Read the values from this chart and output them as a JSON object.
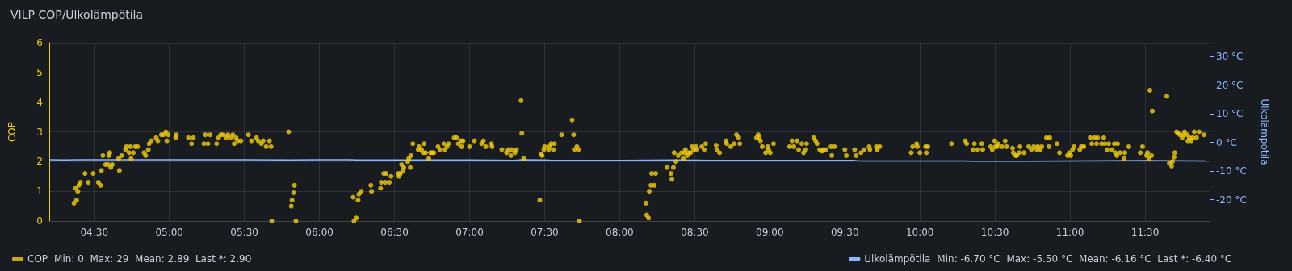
{
  "chart_data": {
    "type": "scatter",
    "title": "VILP COP/Ulkolämpötila",
    "ylabel": "COP",
    "y2label": "Ulkolämpötila",
    "xlim": [
      4.2,
      11.93
    ],
    "xticks": [
      {
        "value": 4.5,
        "label": "04:30"
      },
      {
        "value": 5,
        "label": "05:00"
      },
      {
        "value": 5.5,
        "label": "05:30"
      },
      {
        "value": 6,
        "label": "06:00"
      },
      {
        "value": 6.5,
        "label": "06:30"
      },
      {
        "value": 7,
        "label": "07:00"
      },
      {
        "value": 7.5,
        "label": "07:30"
      },
      {
        "value": 8,
        "label": "08:00"
      },
      {
        "value": 8.5,
        "label": "08:30"
      },
      {
        "value": 9,
        "label": "09:00"
      },
      {
        "value": 9.5,
        "label": "09:30"
      },
      {
        "value": 10,
        "label": "10:00"
      },
      {
        "value": 10.5,
        "label": "10:30"
      },
      {
        "value": 11,
        "label": "11:00"
      },
      {
        "value": 11.5,
        "label": "11:30"
      }
    ],
    "ylim": [
      0,
      6
    ],
    "yticks": [
      0,
      1,
      2,
      3,
      4,
      5,
      6
    ],
    "y2lim": [
      -27.4,
      34.8
    ],
    "y2ticks": [
      {
        "value": -20,
        "label": "-20 °C"
      },
      {
        "value": -10,
        "label": "-10 °C"
      },
      {
        "value": 0,
        "label": "0 °C"
      },
      {
        "value": 10,
        "label": "10 °C"
      },
      {
        "value": 20,
        "label": "20 °C"
      },
      {
        "value": 30,
        "label": "30 °C"
      }
    ],
    "grid": true,
    "legend": "bottom",
    "marker": "circle",
    "annotations": [
      "Min: 0  Max: 29  Mean: 2.89  Last *: 2.90",
      "Min: -6.70 °C  Max: -5.50 °C  Mean: -6.16 °C  Last *: -6.40 °C"
    ],
    "series": [
      {
        "name": "COP",
        "color": "#f2cc0c",
        "x": [
          4.365,
          4.375,
          4.382,
          4.39,
          4.397,
          4.407,
          4.438,
          4.46,
          4.493,
          4.527,
          4.542,
          4.547,
          4.557,
          4.575,
          4.592,
          4.597,
          4.603,
          4.61,
          4.62,
          4.662,
          4.667,
          4.682,
          4.708,
          4.715,
          4.732,
          4.74,
          4.745,
          4.76,
          4.772,
          4.788,
          4.832,
          4.842,
          4.86,
          4.865,
          4.88,
          4.912,
          4.923,
          4.947,
          4.96,
          4.977,
          4.983,
          4.993,
          5.042,
          5.047,
          5.127,
          5.148,
          5.16,
          5.23,
          5.24,
          5.257,
          5.272,
          5.315,
          5.328,
          5.343,
          5.36,
          5.38,
          5.39,
          5.413,
          5.423,
          5.432,
          5.445,
          5.455,
          5.477,
          5.527,
          5.547,
          5.58,
          5.592,
          5.613,
          5.625,
          5.645,
          5.667,
          5.677,
          5.682,
          5.795,
          5.812,
          5.817,
          5.828,
          5.833,
          5.843,
          6.225,
          6.23,
          6.245,
          6.257,
          6.262,
          6.278,
          6.342,
          6.347,
          6.407,
          6.412,
          6.428,
          6.438,
          6.445,
          6.465,
          6.477,
          6.525,
          6.53,
          6.54,
          6.547,
          6.557,
          6.562,
          6.588,
          6.595,
          6.605,
          6.61,
          6.622,
          6.658,
          6.663,
          6.68,
          6.69,
          6.697,
          6.707,
          6.728,
          6.74,
          6.75,
          6.762,
          6.79,
          6.802,
          6.828,
          6.833,
          6.85,
          6.86,
          6.898,
          6.913,
          6.925,
          6.942,
          6.947,
          6.957,
          7.0,
          7.032,
          7.08,
          7.092,
          7.108,
          7.145,
          7.15,
          7.215,
          7.247,
          7.258,
          7.275,
          7.28,
          7.302,
          7.312,
          7.343,
          7.348,
          7.36,
          7.468,
          7.477,
          7.483,
          7.495,
          7.5,
          7.527,
          7.532,
          7.543,
          7.558,
          7.565,
          7.613,
          7.683,
          7.693,
          7.698,
          7.715,
          7.725,
          7.732,
          8.175,
          8.18,
          8.192,
          8.197,
          8.208,
          8.213,
          8.23,
          8.24,
          8.315,
          8.342,
          8.348,
          8.358,
          8.363,
          8.375,
          8.39,
          8.412,
          8.423,
          8.433,
          8.438,
          8.45,
          8.46,
          8.472,
          8.482,
          8.493,
          8.508,
          8.515,
          8.547,
          8.563,
          8.573,
          8.643,
          8.648,
          8.665,
          8.708,
          8.713,
          8.74,
          8.762,
          8.778,
          8.793,
          8.8,
          8.912,
          8.923,
          8.928,
          8.938,
          8.95,
          8.972,
          8.987,
          8.992,
          9.003,
          9.025,
          9.132,
          9.148,
          9.16,
          9.182,
          9.192,
          9.213,
          9.225,
          9.24,
          9.245,
          9.293,
          9.305,
          9.315,
          9.332,
          9.348,
          9.358,
          9.375,
          9.408,
          9.413,
          9.43,
          9.5,
          9.51,
          9.565,
          9.575,
          9.608,
          9.628,
          9.662,
          9.667,
          9.71,
          9.715,
          9.732,
          9.942,
          9.952,
          9.978,
          9.983,
          10.0,
          10.038,
          10.043,
          10.053,
          10.21,
          10.302,
          10.312,
          10.353,
          10.363,
          10.385,
          10.412,
          10.418,
          10.472,
          10.482,
          10.498,
          10.503,
          10.515,
          10.52,
          10.547,
          10.568,
          10.578,
          10.617,
          10.622,
          10.638,
          10.645,
          10.662,
          10.667,
          10.693,
          10.725,
          10.742,
          10.758,
          10.78,
          10.785,
          10.802,
          10.812,
          10.843,
          10.86,
          10.865,
          10.913,
          10.93,
          10.983,
          10.995,
          11.005,
          11.017,
          11.027,
          11.065,
          11.075,
          11.092,
          11.135,
          11.145,
          11.162,
          11.177,
          11.183,
          11.21,
          11.225,
          11.232,
          11.247,
          11.258,
          11.28,
          11.295,
          11.302,
          11.312,
          11.317,
          11.333,
          11.36,
          11.365,
          11.392,
          11.468,
          11.483,
          11.51,
          11.517,
          11.527,
          11.532,
          11.543,
          11.548,
          11.645,
          11.662,
          11.677,
          11.682,
          11.693,
          11.698,
          11.71,
          11.72,
          11.732,
          11.747,
          11.758,
          11.763,
          11.78,
          11.785,
          11.795,
          11.807,
          11.817,
          11.828,
          11.843,
          11.86,
          11.892
        ],
        "values": [
          0.6,
          1.1,
          0.7,
          1.0,
          1.2,
          1.3,
          1.6,
          1.3,
          1.6,
          1.3,
          1.2,
          1.7,
          2.2,
          1.9,
          1.9,
          2.2,
          2.3,
          1.8,
          1.9,
          2.1,
          1.7,
          2.2,
          2.4,
          2.5,
          2.3,
          2.5,
          2.1,
          2.3,
          2.5,
          2.5,
          2.3,
          2.2,
          2.4,
          2.6,
          2.7,
          2.8,
          2.7,
          2.9,
          2.9,
          3.0,
          2.7,
          2.9,
          2.8,
          2.9,
          2.8,
          2.6,
          2.8,
          2.6,
          2.9,
          2.6,
          2.9,
          2.6,
          2.8,
          2.9,
          2.9,
          2.8,
          2.9,
          2.8,
          2.9,
          2.6,
          2.8,
          2.7,
          2.7,
          2.9,
          2.7,
          2.8,
          2.7,
          2.6,
          2.7,
          2.5,
          2.7,
          2.5,
          0,
          3.0,
          0.5,
          0.7,
          0.95,
          1.2,
          0,
          0.8,
          0,
          0.1,
          0.7,
          0.9,
          1.0,
          1.2,
          1.0,
          1.1,
          1.3,
          1.6,
          1.3,
          1.6,
          1.3,
          1.5,
          1.6,
          1.5,
          1.6,
          1.9,
          1.7,
          1.8,
          2.0,
          2.1,
          1.8,
          2.2,
          2.6,
          2.4,
          2.5,
          2.4,
          2.3,
          2.6,
          2.3,
          2.1,
          2.3,
          2.3,
          2.3,
          2.5,
          2.4,
          2.6,
          2.4,
          2.5,
          2.6,
          2.8,
          2.8,
          2.6,
          2.7,
          2.5,
          2.7,
          2.5,
          2.7,
          2.6,
          2.7,
          2.5,
          2.6,
          2.5,
          2.4,
          2.3,
          2.4,
          2.2,
          2.4,
          2.3,
          2.4,
          4.05,
          2.95,
          2.1,
          0.7,
          2.25,
          2.2,
          2.4,
          2.5,
          2.4,
          2.5,
          2.6,
          2.4,
          2.6,
          2.9,
          3.4,
          2.9,
          2.4,
          2.5,
          2.4,
          0,
          0.6,
          0.2,
          0.1,
          1.0,
          1.2,
          1.6,
          1.2,
          1.6,
          1.8,
          1.6,
          1.4,
          1.8,
          2.3,
          2.0,
          2.2,
          2.3,
          2.1,
          2.3,
          2.4,
          2.2,
          2.3,
          2.3,
          2.5,
          2.4,
          2.5,
          2.4,
          2.5,
          2.4,
          2.6,
          2.55,
          2.4,
          2.3,
          2.7,
          2.6,
          2.5,
          2.6,
          2.9,
          2.8,
          2.6,
          2.8,
          2.9,
          2.8,
          2.7,
          2.5,
          2.3,
          2.5,
          2.4,
          2.3,
          2.6,
          2.5,
          2.7,
          2.5,
          2.7,
          2.4,
          2.6,
          2.3,
          2.4,
          2.6,
          2.8,
          2.7,
          2.6,
          2.4,
          2.35,
          2.4,
          2.4,
          2.5,
          2.2,
          2.5,
          2.4,
          2.2,
          2.4,
          2.2,
          2.3,
          2.4,
          2.5,
          2.4,
          2.5,
          2.4,
          2.5,
          2.3,
          2.5,
          2.6,
          2.5,
          2.3,
          2.5,
          2.3,
          2.5,
          2.6,
          2.7,
          2.6,
          2.4,
          2.6,
          2.4,
          2.6,
          2.4,
          2.5,
          2.4,
          2.7,
          2.5,
          2.5,
          2.6,
          2.5,
          2.7,
          2.5,
          2.45,
          2.3,
          2.2,
          2.2,
          2.3,
          2.5,
          2.3,
          2.5,
          2.4,
          2.5,
          2.4,
          2.5,
          2.4,
          2.5,
          2.8,
          2.5,
          2.8,
          2.6,
          2.3,
          2.2,
          2.3,
          2.2,
          2.4,
          2.5,
          2.4,
          2.5,
          2.5,
          2.8,
          2.6,
          2.8,
          2.6,
          2.8,
          2.6,
          2.8,
          2.6,
          2.4,
          2.6,
          2.4,
          2.6,
          2.3,
          2.2,
          2.6,
          2.3,
          2.1,
          2.3,
          2.5,
          2.3,
          2.5,
          2.2,
          2.3,
          2.1,
          4.4,
          2.2,
          3.7,
          4.2,
          1.95,
          1.85,
          2.0,
          2.15,
          2.3,
          3.0,
          2.95,
          2.9,
          2.8,
          2.9,
          3.0,
          2.9,
          2.7,
          2.8,
          2.7,
          2.8,
          3.0,
          2.8,
          3.0,
          2.9
        ]
      },
      {
        "name": "Ulkolämpötila",
        "type": "line",
        "axis": "y2",
        "color": "#8ab8ff",
        "marker": "none",
        "x": [
          4.2,
          4.3,
          4.4,
          5.0,
          5.5,
          5.8,
          6.0,
          6.2,
          6.25,
          7.0,
          7.3,
          7.35,
          7.5,
          7.55,
          8.0,
          8.4,
          8.6,
          9.0,
          9.55,
          9.6,
          10.0,
          10.3,
          10.35,
          10.7,
          11.0,
          11.5,
          11.9
        ],
        "values": [
          -6.0,
          -6.1,
          -6.0,
          -6.0,
          -6.0,
          -6.1,
          -6.0,
          -6.0,
          -6.1,
          -6.1,
          -6.2,
          -6.0,
          -6.1,
          -6.2,
          -6.2,
          -6.1,
          -6.2,
          -6.2,
          -6.2,
          -6.4,
          -6.4,
          -6.4,
          -6.5,
          -6.5,
          -6.4,
          -6.3,
          -6.4
        ]
      }
    ]
  }
}
